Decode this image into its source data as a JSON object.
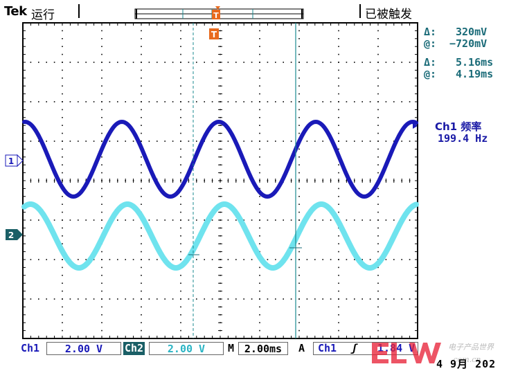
{
  "header": {
    "brand": "Tek",
    "run_state": "运行",
    "trigger_state": "已被触发"
  },
  "cursor_readout": {
    "voltage_delta_label": "Δ:",
    "voltage_delta": "320mV",
    "voltage_at_label": "@:",
    "voltage_at": "−720mV",
    "time_delta_label": "Δ:",
    "time_delta": "5.16ms",
    "time_at_label": "@:",
    "time_at": "4.19ms"
  },
  "measurement": {
    "label": "Ch1 频率",
    "value": "199.4 Hz"
  },
  "channels": {
    "ch1_marker": "1",
    "ch2_marker": "2",
    "trigger_marker": "T"
  },
  "settings": {
    "ch1_label": "Ch1",
    "ch1_scale": "2.00 V",
    "ch2_label": "Ch2",
    "ch2_scale": "2.00 V",
    "timebase_label": "M",
    "timebase": "2.00ms",
    "trigger_mode": "A",
    "trigger_source": "Ch1",
    "trigger_slope": "ʃ",
    "trigger_level": "1.84 V"
  },
  "date": "4 9月 202",
  "colors": {
    "ch1": "#1a1ab8",
    "ch2": "#6fe3ee",
    "cursor": "#1a8a8f",
    "trigger": "#e86a1e",
    "grid": "#000000"
  }
}
